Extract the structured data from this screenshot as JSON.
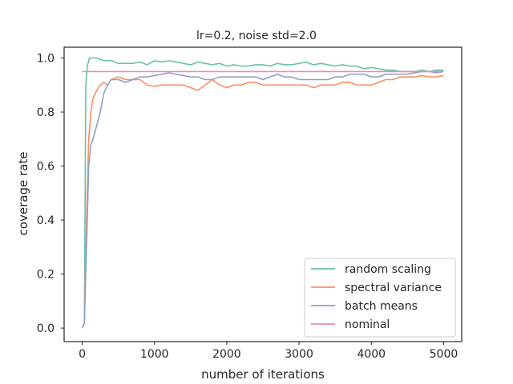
{
  "chart_data": {
    "type": "line",
    "title": "lr=0.2, noise std=2.0",
    "xlabel": "number of iterations",
    "ylabel": "coverage rate",
    "xlim": [
      -250,
      5250
    ],
    "ylim": [
      -0.05,
      1.04
    ],
    "xticks": [
      0,
      1000,
      2000,
      3000,
      4000,
      5000
    ],
    "xtick_labels": [
      "0",
      "1000",
      "2000",
      "3000",
      "4000",
      "5000"
    ],
    "yticks": [
      0.0,
      0.2,
      0.4,
      0.6,
      0.8,
      1.0
    ],
    "ytick_labels": [
      "0.0",
      "0.2",
      "0.4",
      "0.6",
      "0.8",
      "1.0"
    ],
    "grid": false,
    "legend_position": "bottom-right",
    "series": [
      {
        "name": "random scaling",
        "color": "#66c2a5",
        "x": [
          0,
          30,
          50,
          70,
          100,
          150,
          200,
          300,
          400,
          500,
          600,
          700,
          800,
          900,
          1000,
          1100,
          1200,
          1300,
          1400,
          1500,
          1600,
          1700,
          1800,
          1900,
          2000,
          2100,
          2200,
          2300,
          2400,
          2500,
          2600,
          2700,
          2800,
          2900,
          3000,
          3100,
          3200,
          3300,
          3400,
          3500,
          3600,
          3700,
          3800,
          3900,
          4000,
          4100,
          4200,
          4300,
          4400,
          4500,
          4600,
          4700,
          4800,
          4900,
          5000
        ],
        "y": [
          0.0,
          0.02,
          0.9,
          0.97,
          1.0,
          1.0,
          1.0,
          0.99,
          0.99,
          0.98,
          0.98,
          0.98,
          0.985,
          0.975,
          0.99,
          0.985,
          0.99,
          0.985,
          0.98,
          0.975,
          0.985,
          0.98,
          0.975,
          0.98,
          0.97,
          0.975,
          0.97,
          0.97,
          0.975,
          0.975,
          0.97,
          0.98,
          0.975,
          0.975,
          0.98,
          0.985,
          0.975,
          0.98,
          0.975,
          0.97,
          0.975,
          0.97,
          0.97,
          0.96,
          0.965,
          0.96,
          0.955,
          0.955,
          0.95,
          0.95,
          0.95,
          0.955,
          0.95,
          0.955,
          0.955
        ]
      },
      {
        "name": "spectral variance",
        "color": "#fc8d62",
        "x": [
          0,
          30,
          60,
          90,
          120,
          150,
          200,
          250,
          300,
          350,
          400,
          500,
          600,
          700,
          800,
          900,
          1000,
          1100,
          1200,
          1300,
          1400,
          1500,
          1600,
          1700,
          1800,
          1900,
          2000,
          2100,
          2200,
          2300,
          2400,
          2500,
          2600,
          2700,
          2800,
          2900,
          3000,
          3100,
          3200,
          3300,
          3400,
          3500,
          3600,
          3700,
          3800,
          3900,
          4000,
          4100,
          4200,
          4300,
          4400,
          4500,
          4600,
          4700,
          4800,
          4900,
          5000
        ],
        "y": [
          0.0,
          0.02,
          0.4,
          0.7,
          0.8,
          0.85,
          0.88,
          0.9,
          0.91,
          0.9,
          0.92,
          0.93,
          0.92,
          0.92,
          0.92,
          0.9,
          0.895,
          0.9,
          0.9,
          0.9,
          0.9,
          0.89,
          0.88,
          0.9,
          0.92,
          0.9,
          0.89,
          0.9,
          0.9,
          0.91,
          0.91,
          0.9,
          0.9,
          0.9,
          0.9,
          0.9,
          0.9,
          0.9,
          0.89,
          0.9,
          0.9,
          0.9,
          0.91,
          0.91,
          0.9,
          0.9,
          0.9,
          0.91,
          0.92,
          0.92,
          0.93,
          0.93,
          0.93,
          0.935,
          0.93,
          0.93,
          0.935
        ]
      },
      {
        "name": "batch means",
        "color": "#8da0cb",
        "x": [
          0,
          30,
          60,
          90,
          120,
          150,
          200,
          250,
          300,
          350,
          400,
          500,
          600,
          700,
          800,
          900,
          1000,
          1100,
          1200,
          1300,
          1400,
          1500,
          1600,
          1700,
          1800,
          1900,
          2000,
          2100,
          2200,
          2300,
          2400,
          2500,
          2600,
          2700,
          2800,
          2900,
          3000,
          3100,
          3200,
          3300,
          3400,
          3500,
          3600,
          3700,
          3800,
          3900,
          4000,
          4100,
          4200,
          4300,
          4400,
          4500,
          4600,
          4700,
          4800,
          4900,
          5000
        ],
        "y": [
          0.0,
          0.02,
          0.3,
          0.6,
          0.68,
          0.7,
          0.75,
          0.8,
          0.87,
          0.9,
          0.92,
          0.92,
          0.91,
          0.92,
          0.93,
          0.93,
          0.935,
          0.94,
          0.945,
          0.94,
          0.935,
          0.93,
          0.93,
          0.92,
          0.92,
          0.93,
          0.93,
          0.93,
          0.93,
          0.93,
          0.93,
          0.92,
          0.93,
          0.94,
          0.93,
          0.93,
          0.92,
          0.92,
          0.92,
          0.92,
          0.92,
          0.93,
          0.93,
          0.94,
          0.94,
          0.94,
          0.93,
          0.93,
          0.94,
          0.94,
          0.94,
          0.94,
          0.945,
          0.95,
          0.95,
          0.945,
          0.95
        ]
      },
      {
        "name": "nominal",
        "color": "#e78ac3",
        "x": [
          0,
          5000
        ],
        "y": [
          0.95,
          0.95
        ]
      }
    ]
  }
}
